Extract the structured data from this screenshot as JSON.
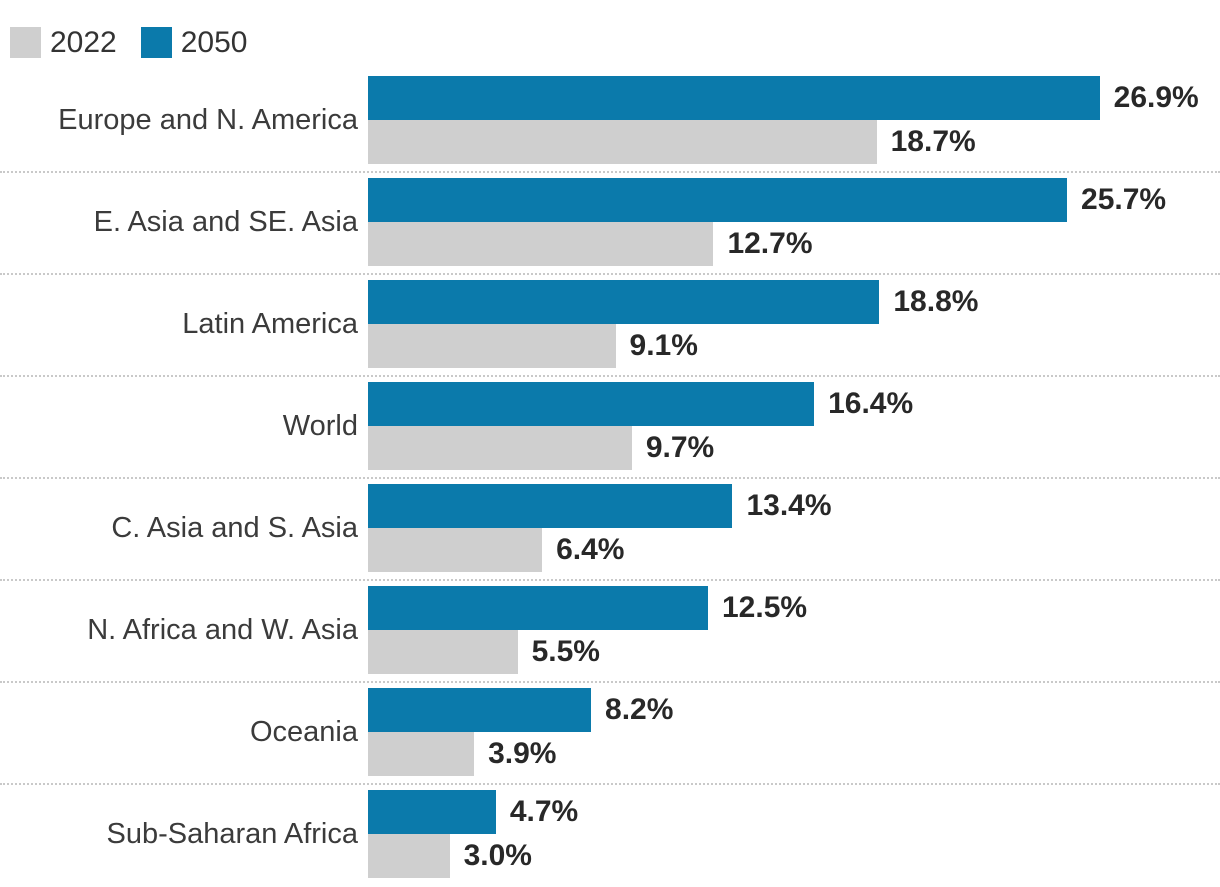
{
  "page": {
    "background": "#ffffff"
  },
  "legend": {
    "position": "top-left",
    "items": [
      {
        "label": "2022",
        "color": "#cfcfcf"
      },
      {
        "label": "2050",
        "color": "#0b7aab"
      }
    ]
  },
  "colors": {
    "bar_2050": "#0b7aab",
    "bar_2022": "#cfcfcf",
    "category_label": "#3b3b3b",
    "value_label": "#282828",
    "separator": "#c9c9c9"
  },
  "chart_data": {
    "type": "bar",
    "orientation": "horizontal",
    "title": "",
    "xlabel": "",
    "ylabel": "",
    "unit": "%",
    "grid": false,
    "legend_position": "top-left",
    "xlim": [
      0,
      31.4
    ],
    "categories": [
      "Europe and N. America",
      "E. Asia and SE. Asia",
      "Latin America",
      "World",
      "C. Asia and S. Asia",
      "N. Africa and W. Asia",
      "Oceania",
      "Sub-Saharan Africa"
    ],
    "series": [
      {
        "name": "2050",
        "color": "#0b7aab",
        "values": [
          26.9,
          25.7,
          18.8,
          16.4,
          13.4,
          12.5,
          8.2,
          4.7
        ]
      },
      {
        "name": "2022",
        "color": "#cfcfcf",
        "values": [
          18.7,
          12.7,
          9.1,
          9.7,
          6.4,
          5.5,
          3.9,
          3.0
        ]
      }
    ],
    "value_label_format": "{value}%"
  }
}
